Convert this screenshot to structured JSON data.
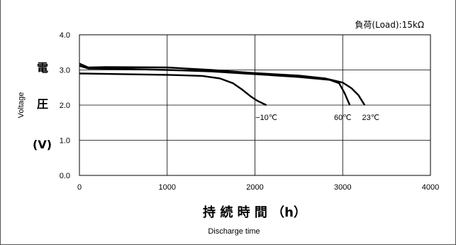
{
  "chart_data": {
    "type": "line",
    "title": "",
    "load_note": "負荷(Load):15kΩ",
    "xlabel_jp": "持 続 時 間 （h）",
    "xlabel_en": "Discharge time",
    "ylabel_jp": [
      "電",
      "圧",
      "(V)"
    ],
    "ylabel_en": "Voltage",
    "xlim": [
      0,
      4000
    ],
    "ylim": [
      0,
      4.0
    ],
    "x_ticks": [
      "0",
      "1000",
      "2000",
      "3000",
      "4000"
    ],
    "y_ticks": [
      "0.0",
      "1.0",
      "2.0",
      "3.0",
      "4.0"
    ],
    "grid": true,
    "series": [
      {
        "name": "23℃",
        "points": [
          [
            0,
            3.18
          ],
          [
            100,
            3.07
          ],
          [
            300,
            3.08
          ],
          [
            1000,
            3.07
          ],
          [
            1500,
            3.0
          ],
          [
            2000,
            2.91
          ],
          [
            2500,
            2.84
          ],
          [
            2800,
            2.76
          ],
          [
            3000,
            2.64
          ],
          [
            3100,
            2.48
          ],
          [
            3180,
            2.28
          ],
          [
            3250,
            2.0
          ]
        ]
      },
      {
        "name": "60℃",
        "points": [
          [
            0,
            3.12
          ],
          [
            100,
            3.04
          ],
          [
            500,
            3.03
          ],
          [
            1000,
            3.0
          ],
          [
            1500,
            2.96
          ],
          [
            2000,
            2.88
          ],
          [
            2500,
            2.8
          ],
          [
            2850,
            2.72
          ],
          [
            2960,
            2.62
          ],
          [
            3020,
            2.35
          ],
          [
            3080,
            2.0
          ]
        ]
      },
      {
        "name": "−10℃",
        "points": [
          [
            0,
            2.9
          ],
          [
            500,
            2.88
          ],
          [
            1000,
            2.86
          ],
          [
            1400,
            2.83
          ],
          [
            1600,
            2.76
          ],
          [
            1750,
            2.62
          ],
          [
            1850,
            2.45
          ],
          [
            1950,
            2.25
          ],
          [
            2030,
            2.12
          ],
          [
            2130,
            2.0
          ]
        ]
      }
    ],
    "annotations": [
      {
        "text": "−10℃",
        "x": 2130
      },
      {
        "text": "60℃",
        "x": 3000
      },
      {
        "text": "23℃",
        "x": 3320
      }
    ]
  }
}
